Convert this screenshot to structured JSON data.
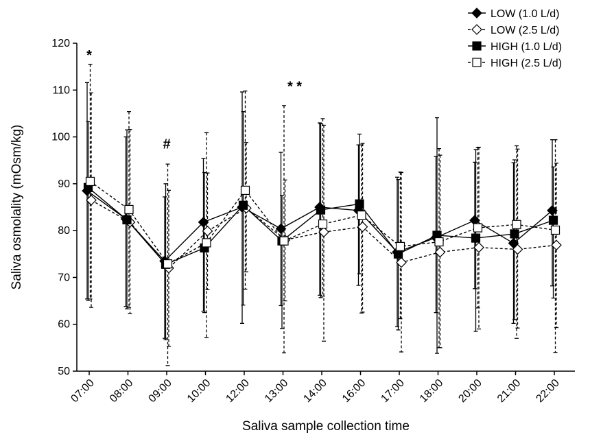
{
  "chart_data": {
    "type": "line",
    "title": "",
    "xlabel": "Saliva sample collection time",
    "ylabel": "Saliva osmolality (mOsm/kg)",
    "ylim": [
      50,
      120
    ],
    "yticks": [
      50,
      60,
      70,
      80,
      90,
      100,
      110,
      120
    ],
    "categories": [
      "07:00",
      "08:00",
      "09:00",
      "10:00",
      "12:00",
      "13:00",
      "14:00",
      "16:00",
      "17:00",
      "18:00",
      "20:00",
      "21:00",
      "22:00"
    ],
    "grid": false,
    "legend_position": "top-right",
    "series": [
      {
        "name": "LOW (1.0 L/d)",
        "marker": "diamond",
        "fill": "filled",
        "line": "solid",
        "values": [
          88.5,
          82.5,
          73.5,
          81.8,
          85.0,
          80.4,
          85.0,
          84.3,
          75.4,
          78.5,
          82.2,
          77.3,
          84.3
        ],
        "err_upper": [
          111.6,
          100.0,
          87.2,
          95.4,
          109.6,
          96.7,
          103.0,
          98.3,
          91.4,
          95.8,
          94.6,
          94.5,
          99.4
        ],
        "err_lower": [
          65.4,
          63.8,
          57.0,
          62.8,
          60.2,
          64.0,
          66.2,
          68.3,
          59.5,
          62.5,
          67.6,
          60.2,
          68.2
        ]
      },
      {
        "name": "LOW (2.5 L/d)",
        "marker": "diamond",
        "fill": "open",
        "line": "dashed",
        "values": [
          86.5,
          81.8,
          72.0,
          79.9,
          84.8,
          78.0,
          79.7,
          80.8,
          73.2,
          75.4,
          76.4,
          76.0,
          76.9
        ],
        "err_upper": [
          109.4,
          101.6,
          88.6,
          92.3,
          98.8,
          90.8,
          102.5,
          98.6,
          92.4,
          96.1,
          97.8,
          97.4,
          94.4
        ],
        "err_lower": [
          63.6,
          62.3,
          55.3,
          67.4,
          71.2,
          65.0,
          56.4,
          62.6,
          54.1,
          55.0,
          59.0,
          59.2,
          59.3
        ]
      },
      {
        "name": "HIGH (1.0 L/d)",
        "marker": "square",
        "fill": "filled",
        "line": "solid",
        "values": [
          89.2,
          82.3,
          72.8,
          76.3,
          85.4,
          77.8,
          84.4,
          85.7,
          75.0,
          79.0,
          78.4,
          79.3,
          82.2
        ],
        "err_upper": [
          103.3,
          101.5,
          90.0,
          92.4,
          105.4,
          87.5,
          102.8,
          100.6,
          90.9,
          104.1,
          97.3,
          95.1,
          93.6
        ],
        "err_lower": [
          65.1,
          63.3,
          56.7,
          62.5,
          64.1,
          59.1,
          65.7,
          70.8,
          58.8,
          53.8,
          58.5,
          61.0,
          65.6
        ]
      },
      {
        "name": "HIGH (2.5 L/d)",
        "marker": "square",
        "fill": "open",
        "line": "dashed",
        "values": [
          90.5,
          84.5,
          72.9,
          77.4,
          88.6,
          77.8,
          81.4,
          83.3,
          76.6,
          77.6,
          80.6,
          81.3,
          80.1
        ],
        "err_upper": [
          115.5,
          105.4,
          94.2,
          100.9,
          109.8,
          106.7,
          103.9,
          98.3,
          92.5,
          97.5,
          97.7,
          98.1,
          99.4
        ],
        "err_lower": [
          65.4,
          63.6,
          51.2,
          57.2,
          67.5,
          53.9,
          66.0,
          62.4,
          61.2,
          55.0,
          63.5,
          57.0,
          54.0
        ]
      }
    ],
    "annotations": [
      {
        "text": "*",
        "category_index": 0,
        "y": 116.5
      },
      {
        "text": "#",
        "category_index": 2,
        "y": 97.5
      },
      {
        "text": "**",
        "category_index": 5,
        "y": 109.8
      }
    ]
  }
}
